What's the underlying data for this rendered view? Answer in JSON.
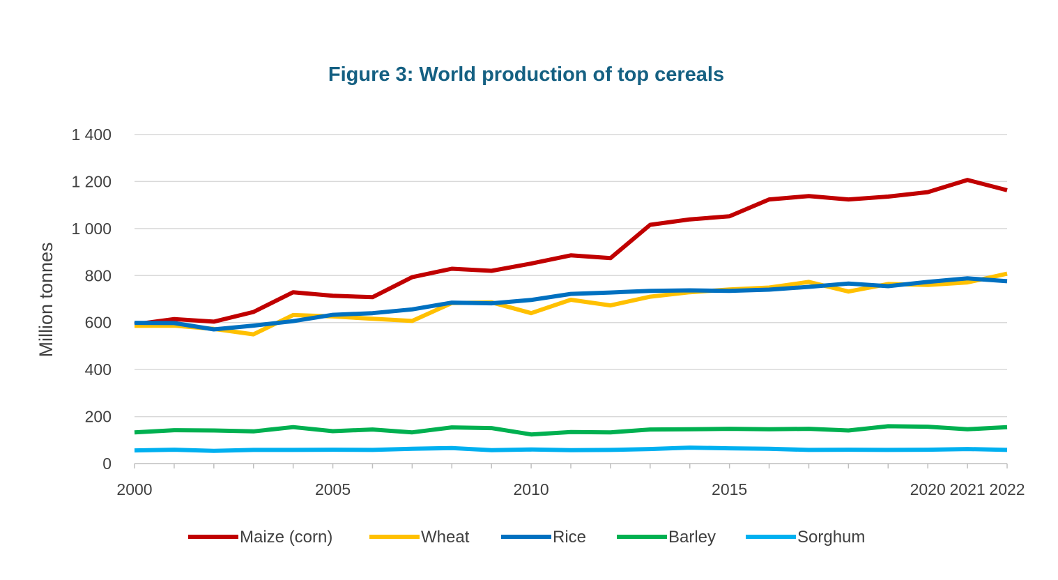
{
  "chart_data": {
    "type": "line",
    "title": "Figure 3: World production of top cereals",
    "ylabel": "Million tonnes",
    "ylim": [
      0,
      1400
    ],
    "y_ticks": [
      0,
      200,
      400,
      600,
      800,
      1000,
      1200,
      1400
    ],
    "y_tick_labels": [
      "0",
      "200",
      "400",
      "600",
      "800",
      "1 000",
      "1 200",
      "1 400"
    ],
    "x": [
      2000,
      2001,
      2002,
      2003,
      2004,
      2005,
      2006,
      2007,
      2008,
      2009,
      2010,
      2011,
      2012,
      2013,
      2014,
      2015,
      2016,
      2017,
      2018,
      2019,
      2020,
      2021,
      2022
    ],
    "x_tick_labels": [
      {
        "year": 2000,
        "label": "2000"
      },
      {
        "year": 2005,
        "label": "2005"
      },
      {
        "year": 2010,
        "label": "2010"
      },
      {
        "year": 2015,
        "label": "2015"
      },
      {
        "year": 2020,
        "label": "2020"
      },
      {
        "year": 2021,
        "label": "2021"
      },
      {
        "year": 2022,
        "label": "2022"
      }
    ],
    "grid": true,
    "legend_position": "bottom",
    "series": [
      {
        "name": "Maize (corn)",
        "color": "#c00000",
        "values": [
          592,
          615,
          604,
          645,
          729,
          714,
          708,
          793,
          829,
          820,
          851,
          886,
          874,
          1016,
          1039,
          1052,
          1124,
          1138,
          1124,
          1136,
          1155,
          1207,
          1163
        ]
      },
      {
        "name": "Wheat",
        "color": "#ffc000",
        "values": [
          586,
          587,
          573,
          550,
          632,
          626,
          616,
          607,
          683,
          686,
          640,
          697,
          673,
          710,
          729,
          741,
          749,
          773,
          732,
          764,
          760,
          771,
          808
        ]
      },
      {
        "name": "Rice",
        "color": "#0070c0",
        "values": [
          599,
          598,
          571,
          587,
          606,
          633,
          640,
          656,
          685,
          682,
          696,
          722,
          728,
          735,
          737,
          735,
          740,
          752,
          766,
          755,
          773,
          788,
          776
        ]
      },
      {
        "name": "Barley",
        "color": "#00b050",
        "values": [
          133,
          142,
          141,
          137,
          155,
          138,
          145,
          133,
          154,
          151,
          124,
          134,
          133,
          145,
          146,
          148,
          146,
          148,
          141,
          159,
          157,
          146,
          155
        ]
      },
      {
        "name": "Sorghum",
        "color": "#00b0f0",
        "values": [
          56,
          59,
          54,
          58,
          58,
          59,
          58,
          63,
          66,
          57,
          60,
          57,
          58,
          62,
          68,
          65,
          63,
          58,
          59,
          58,
          59,
          62,
          58
        ]
      }
    ]
  }
}
